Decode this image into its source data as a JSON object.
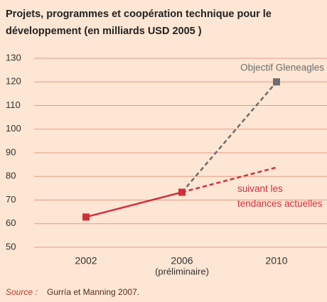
{
  "chart_data": {
    "type": "line",
    "title": [
      "Projets, programmes et coopération technique pour le",
      "développement (en milliards USD 2005 )"
    ],
    "categories": [
      "2002",
      "2006",
      "2010"
    ],
    "x_sublabels": [
      null,
      "(préliminaire)",
      null
    ],
    "ylim": [
      50,
      130
    ],
    "yticks": [
      50,
      60,
      70,
      80,
      90,
      100,
      110,
      120,
      130
    ],
    "grid": true,
    "series": [
      {
        "color": "#d42e3c",
        "dashed": false,
        "markers": [
          true,
          true,
          false
        ],
        "values": [
          62.8,
          73.3,
          null
        ]
      },
      {
        "name": "suivant les\ntendances actuelles",
        "color": "#d42e3c",
        "dashed": true,
        "markers": [
          false,
          false,
          false
        ],
        "values": [
          null,
          73.3,
          83.8
        ]
      },
      {
        "name": "Objectif Gleneagles",
        "color": "#6d6d6d",
        "dashed": true,
        "markers": [
          false,
          false,
          true
        ],
        "values": [
          null,
          73.3,
          120
        ]
      }
    ],
    "source": {
      "label": "Source :",
      "text": "Gurría et Manning 2007."
    }
  }
}
